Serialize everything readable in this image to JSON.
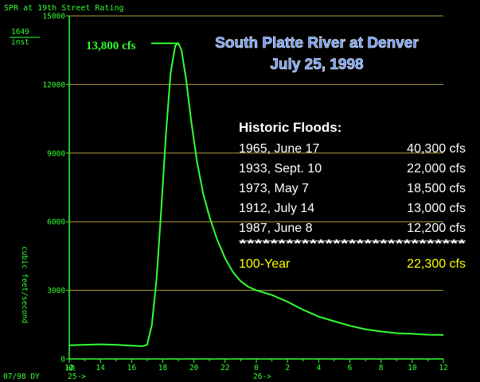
{
  "header": {
    "station": "SPR at 19th Street Rating",
    "current_value": "1649",
    "current_label": "inst"
  },
  "title": {
    "line1": "South Platte River at Denver",
    "line2": "July 25, 1998"
  },
  "peak_label": "13,800 cfs",
  "historic": {
    "heading": "Historic Floods:",
    "rows": [
      {
        "event": "1965, June 17",
        "flow": "40,300 cfs"
      },
      {
        "event": "1933, Sept. 10",
        "flow": "22,000 cfs"
      },
      {
        "event": "1973, May 7",
        "flow": "18,500 cfs"
      },
      {
        "event": "1912, July 14",
        "flow": "13,000 cfs"
      },
      {
        "event": "1987, June 8",
        "flow": "12,200 cfs"
      }
    ],
    "separator": "*****************************",
    "hundred_year": {
      "event": "100-Year",
      "flow": "22,300 cfs"
    }
  },
  "axis_footer": {
    "hr_label": "HR",
    "date_label": "07/98 DY",
    "day1_label": "25->",
    "day2_label": "26->"
  },
  "colors": {
    "background": "#000000",
    "line": "#33ff33",
    "grid": "#b0a040",
    "title": "#6699ff",
    "table_text": "#ffffff",
    "hundred_year": "#ffff00"
  },
  "chart_data": {
    "type": "line",
    "ylabel": "cubic feet/second",
    "ylim": [
      0,
      15000
    ],
    "yticks": [
      0,
      3000,
      6000,
      9000,
      12000,
      15000
    ],
    "xticks": [
      {
        "t": 12,
        "label": "12"
      },
      {
        "t": 14,
        "label": "14"
      },
      {
        "t": 16,
        "label": "16"
      },
      {
        "t": 18,
        "label": "18"
      },
      {
        "t": 20,
        "label": "20"
      },
      {
        "t": 22,
        "label": "22"
      },
      {
        "t": 24,
        "label": "0"
      },
      {
        "t": 26,
        "label": "2"
      },
      {
        "t": 28,
        "label": "4"
      },
      {
        "t": 30,
        "label": "6"
      },
      {
        "t": 32,
        "label": "8"
      },
      {
        "t": 34,
        "label": "10"
      },
      {
        "t": 36,
        "label": "12"
      }
    ],
    "xlim": [
      12,
      36
    ],
    "grid": true,
    "series": [
      {
        "points": [
          [
            12.0,
            600
          ],
          [
            13.0,
            620
          ],
          [
            14.0,
            640
          ],
          [
            15.0,
            620
          ],
          [
            16.0,
            580
          ],
          [
            16.7,
            560
          ],
          [
            17.0,
            620
          ],
          [
            17.3,
            1500
          ],
          [
            17.6,
            3500
          ],
          [
            17.9,
            6500
          ],
          [
            18.2,
            9800
          ],
          [
            18.5,
            12500
          ],
          [
            18.8,
            13700
          ],
          [
            19.0,
            13800
          ],
          [
            19.2,
            13500
          ],
          [
            19.5,
            12200
          ],
          [
            19.8,
            10500
          ],
          [
            20.2,
            8600
          ],
          [
            20.6,
            7200
          ],
          [
            21.0,
            6200
          ],
          [
            21.5,
            5200
          ],
          [
            22.0,
            4400
          ],
          [
            22.5,
            3800
          ],
          [
            23.0,
            3400
          ],
          [
            23.5,
            3150
          ],
          [
            24.0,
            3000
          ],
          [
            25.0,
            2800
          ],
          [
            26.0,
            2500
          ],
          [
            27.0,
            2150
          ],
          [
            28.0,
            1850
          ],
          [
            29.0,
            1650
          ],
          [
            30.0,
            1450
          ],
          [
            31.0,
            1300
          ],
          [
            32.0,
            1200
          ],
          [
            33.0,
            1130
          ],
          [
            34.0,
            1100
          ],
          [
            35.0,
            1060
          ],
          [
            36.0,
            1050
          ]
        ]
      }
    ]
  }
}
